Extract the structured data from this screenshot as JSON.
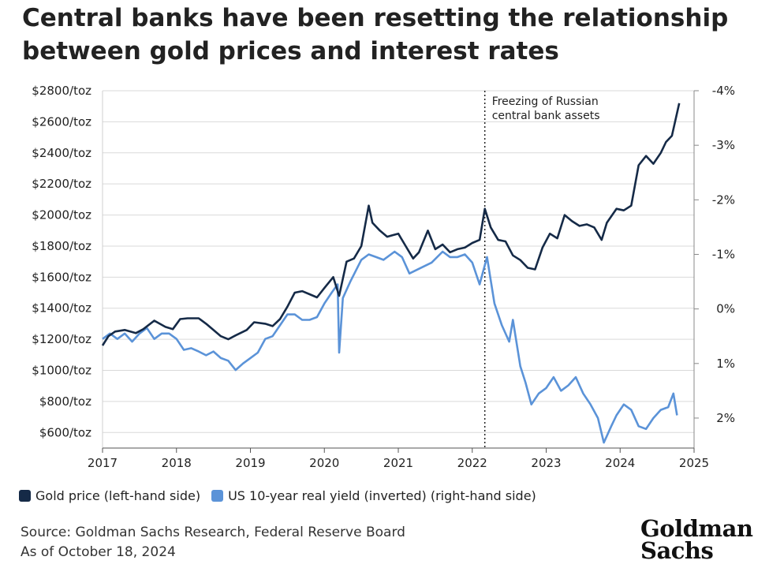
{
  "header": {
    "title": "Central banks have been resetting the relationship between gold prices and interest rates"
  },
  "legend": {
    "gold_label": "Gold price (left-hand side)",
    "yield_label": "US 10-year real yield (inverted) (right-hand side)"
  },
  "footer": {
    "source": "Source: Goldman Sachs Research, Federal Reserve Board",
    "asof": "As of October 18, 2024"
  },
  "logo": {
    "line1": "Goldman",
    "line2": "Sachs"
  },
  "colors": {
    "gold": "#152a47",
    "yield": "#5b93d8",
    "grid": "#d9d9d9"
  },
  "chart_data": {
    "type": "line",
    "title": "Central banks have been resetting the relationship between gold prices and interest rates",
    "x_ticks": [
      "2017",
      "2018",
      "2019",
      "2020",
      "2021",
      "2022",
      "2023",
      "2024",
      "2025"
    ],
    "xlim": [
      2017,
      2025
    ],
    "left_axis": {
      "ylim": [
        500,
        2800
      ],
      "ticks": [
        {
          "v": 2800,
          "label": "$2800/toz"
        },
        {
          "v": 2600,
          "label": "$2600/toz"
        },
        {
          "v": 2400,
          "label": "$2400/toz"
        },
        {
          "v": 2200,
          "label": "$2200/toz"
        },
        {
          "v": 2000,
          "label": "$2000/toz"
        },
        {
          "v": 1800,
          "label": "$1800/toz"
        },
        {
          "v": 1600,
          "label": "$1600/toz"
        },
        {
          "v": 1400,
          "label": "$1400/toz"
        },
        {
          "v": 1200,
          "label": "$1200/toz"
        },
        {
          "v": 1000,
          "label": "$1000/toz"
        },
        {
          "v": 800,
          "label": "$800/toz"
        },
        {
          "v": 600,
          "label": "$600/toz"
        }
      ]
    },
    "right_axis": {
      "inverted": true,
      "ylim": [
        -4.0,
        2.55
      ],
      "ticks": [
        {
          "v": -4,
          "label": "-4%"
        },
        {
          "v": -3,
          "label": "-3%"
        },
        {
          "v": -2,
          "label": "-2%"
        },
        {
          "v": -1,
          "label": "-1%"
        },
        {
          "v": 0,
          "label": "0%"
        },
        {
          "v": 1,
          "label": "1%"
        },
        {
          "v": 2,
          "label": "2%"
        }
      ]
    },
    "annotation": {
      "x": 2022.17,
      "text_line1": "Freezing of Russian",
      "text_line2": "central bank assets"
    },
    "series": [
      {
        "name": "Gold price (left-hand side)",
        "axis": "left",
        "points": [
          [
            2017.0,
            1160
          ],
          [
            2017.08,
            1220
          ],
          [
            2017.17,
            1250
          ],
          [
            2017.3,
            1260
          ],
          [
            2017.45,
            1240
          ],
          [
            2017.55,
            1265
          ],
          [
            2017.7,
            1320
          ],
          [
            2017.85,
            1280
          ],
          [
            2017.95,
            1265
          ],
          [
            2018.05,
            1330
          ],
          [
            2018.15,
            1335
          ],
          [
            2018.3,
            1335
          ],
          [
            2018.4,
            1300
          ],
          [
            2018.5,
            1260
          ],
          [
            2018.6,
            1220
          ],
          [
            2018.7,
            1200
          ],
          [
            2018.8,
            1225
          ],
          [
            2018.95,
            1260
          ],
          [
            2019.05,
            1310
          ],
          [
            2019.2,
            1300
          ],
          [
            2019.3,
            1285
          ],
          [
            2019.4,
            1330
          ],
          [
            2019.5,
            1410
          ],
          [
            2019.6,
            1500
          ],
          [
            2019.7,
            1510
          ],
          [
            2019.8,
            1490
          ],
          [
            2019.9,
            1470
          ],
          [
            2020.0,
            1530
          ],
          [
            2020.12,
            1600
          ],
          [
            2020.2,
            1480
          ],
          [
            2020.3,
            1700
          ],
          [
            2020.4,
            1720
          ],
          [
            2020.5,
            1800
          ],
          [
            2020.6,
            2060
          ],
          [
            2020.65,
            1950
          ],
          [
            2020.75,
            1900
          ],
          [
            2020.85,
            1860
          ],
          [
            2020.92,
            1870
          ],
          [
            2021.0,
            1880
          ],
          [
            2021.1,
            1800
          ],
          [
            2021.2,
            1720
          ],
          [
            2021.28,
            1760
          ],
          [
            2021.4,
            1900
          ],
          [
            2021.5,
            1780
          ],
          [
            2021.6,
            1810
          ],
          [
            2021.7,
            1760
          ],
          [
            2021.8,
            1780
          ],
          [
            2021.9,
            1790
          ],
          [
            2022.0,
            1820
          ],
          [
            2022.1,
            1840
          ],
          [
            2022.17,
            2040
          ],
          [
            2022.25,
            1920
          ],
          [
            2022.35,
            1840
          ],
          [
            2022.45,
            1830
          ],
          [
            2022.55,
            1740
          ],
          [
            2022.65,
            1710
          ],
          [
            2022.75,
            1660
          ],
          [
            2022.85,
            1650
          ],
          [
            2022.95,
            1790
          ],
          [
            2023.05,
            1880
          ],
          [
            2023.15,
            1850
          ],
          [
            2023.25,
            2000
          ],
          [
            2023.35,
            1960
          ],
          [
            2023.45,
            1930
          ],
          [
            2023.55,
            1940
          ],
          [
            2023.65,
            1920
          ],
          [
            2023.75,
            1840
          ],
          [
            2023.82,
            1950
          ],
          [
            2023.95,
            2040
          ],
          [
            2024.05,
            2030
          ],
          [
            2024.15,
            2060
          ],
          [
            2024.25,
            2320
          ],
          [
            2024.35,
            2380
          ],
          [
            2024.45,
            2330
          ],
          [
            2024.55,
            2400
          ],
          [
            2024.62,
            2470
          ],
          [
            2024.7,
            2510
          ],
          [
            2024.8,
            2720
          ]
        ]
      },
      {
        "name": "US 10-year real yield (inverted) (right-hand side)",
        "axis": "right",
        "points": [
          [
            2017.0,
            0.55
          ],
          [
            2017.1,
            0.45
          ],
          [
            2017.2,
            0.55
          ],
          [
            2017.3,
            0.45
          ],
          [
            2017.4,
            0.6
          ],
          [
            2017.5,
            0.45
          ],
          [
            2017.6,
            0.35
          ],
          [
            2017.7,
            0.55
          ],
          [
            2017.8,
            0.45
          ],
          [
            2017.9,
            0.45
          ],
          [
            2018.0,
            0.55
          ],
          [
            2018.1,
            0.75
          ],
          [
            2018.2,
            0.72
          ],
          [
            2018.3,
            0.78
          ],
          [
            2018.4,
            0.85
          ],
          [
            2018.5,
            0.78
          ],
          [
            2018.6,
            0.9
          ],
          [
            2018.7,
            0.95
          ],
          [
            2018.8,
            1.12
          ],
          [
            2018.9,
            1.0
          ],
          [
            2019.0,
            0.9
          ],
          [
            2019.1,
            0.8
          ],
          [
            2019.2,
            0.55
          ],
          [
            2019.3,
            0.5
          ],
          [
            2019.4,
            0.3
          ],
          [
            2019.5,
            0.1
          ],
          [
            2019.6,
            0.1
          ],
          [
            2019.7,
            0.2
          ],
          [
            2019.8,
            0.2
          ],
          [
            2019.9,
            0.15
          ],
          [
            2020.0,
            -0.1
          ],
          [
            2020.1,
            -0.3
          ],
          [
            2020.18,
            -0.45
          ],
          [
            2020.2,
            0.8
          ],
          [
            2020.25,
            -0.2
          ],
          [
            2020.35,
            -0.5
          ],
          [
            2020.5,
            -0.9
          ],
          [
            2020.6,
            -1.0
          ],
          [
            2020.7,
            -0.95
          ],
          [
            2020.8,
            -0.9
          ],
          [
            2020.95,
            -1.05
          ],
          [
            2021.05,
            -0.95
          ],
          [
            2021.15,
            -0.65
          ],
          [
            2021.3,
            -0.75
          ],
          [
            2021.45,
            -0.85
          ],
          [
            2021.6,
            -1.05
          ],
          [
            2021.7,
            -0.95
          ],
          [
            2021.8,
            -0.95
          ],
          [
            2021.9,
            -1.0
          ],
          [
            2022.0,
            -0.85
          ],
          [
            2022.1,
            -0.45
          ],
          [
            2022.2,
            -0.95
          ],
          [
            2022.3,
            -0.1
          ],
          [
            2022.4,
            0.3
          ],
          [
            2022.5,
            0.6
          ],
          [
            2022.55,
            0.2
          ],
          [
            2022.65,
            1.05
          ],
          [
            2022.72,
            1.35
          ],
          [
            2022.8,
            1.75
          ],
          [
            2022.9,
            1.55
          ],
          [
            2023.0,
            1.45
          ],
          [
            2023.1,
            1.25
          ],
          [
            2023.2,
            1.5
          ],
          [
            2023.3,
            1.4
          ],
          [
            2023.4,
            1.25
          ],
          [
            2023.5,
            1.55
          ],
          [
            2023.6,
            1.75
          ],
          [
            2023.7,
            2.0
          ],
          [
            2023.78,
            2.45
          ],
          [
            2023.88,
            2.15
          ],
          [
            2023.95,
            1.95
          ],
          [
            2024.05,
            1.75
          ],
          [
            2024.15,
            1.85
          ],
          [
            2024.25,
            2.15
          ],
          [
            2024.35,
            2.2
          ],
          [
            2024.45,
            2.0
          ],
          [
            2024.55,
            1.85
          ],
          [
            2024.65,
            1.8
          ],
          [
            2024.72,
            1.55
          ],
          [
            2024.77,
            1.95
          ]
        ]
      }
    ]
  }
}
